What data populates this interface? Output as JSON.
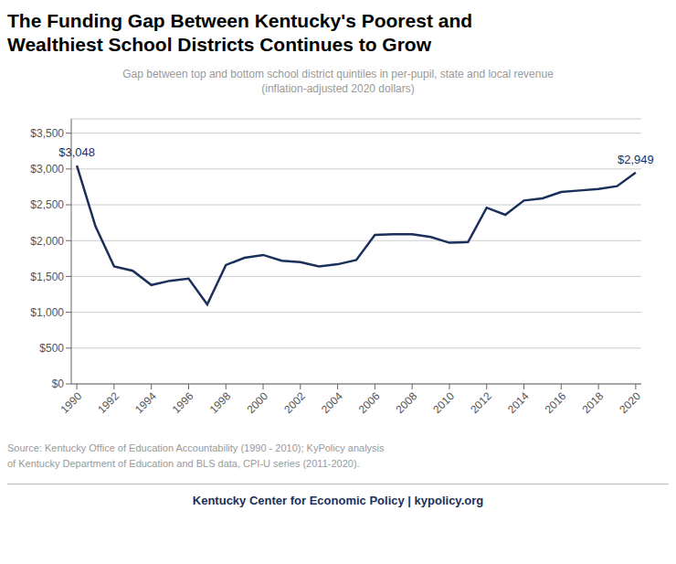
{
  "chart_data": {
    "type": "line",
    "title": "The Funding Gap Between Kentucky's Poorest and\nWealthiest School Districts Continues to Grow",
    "subtitle": "Gap between top and bottom school district quintiles in per-pupil, state and local revenue\n(inflation-adjusted 2020 dollars)",
    "x": [
      1990,
      1991,
      1992,
      1993,
      1994,
      1995,
      1996,
      1997,
      1998,
      1999,
      2000,
      2001,
      2002,
      2003,
      2004,
      2005,
      2006,
      2007,
      2008,
      2009,
      2010,
      2011,
      2012,
      2013,
      2014,
      2015,
      2016,
      2017,
      2018,
      2019,
      2020
    ],
    "values": [
      3048,
      2200,
      1640,
      1580,
      1380,
      1440,
      1470,
      1110,
      1660,
      1760,
      1800,
      1720,
      1700,
      1640,
      1670,
      1730,
      2080,
      2090,
      2090,
      2050,
      1970,
      1980,
      2460,
      2360,
      2560,
      2590,
      2680,
      2700,
      2720,
      2760,
      2949
    ],
    "color": "#1a2f5a",
    "xlim": [
      1989.7,
      2020.3
    ],
    "xticks": [
      1990,
      1992,
      1994,
      1996,
      1998,
      2000,
      2002,
      2004,
      2006,
      2008,
      2010,
      2012,
      2014,
      2016,
      2018,
      2020
    ],
    "ylim": [
      0,
      3700
    ],
    "yticks": [
      {
        "value": 0,
        "label": "$0"
      },
      {
        "value": 500,
        "label": "$500"
      },
      {
        "value": 1000,
        "label": "$1,000"
      },
      {
        "value": 1500,
        "label": "$1,500"
      },
      {
        "value": 2000,
        "label": "$2,000"
      },
      {
        "value": 2500,
        "label": "$2,500"
      },
      {
        "value": 3000,
        "label": "$3,000"
      },
      {
        "value": 3500,
        "label": "$3,500"
      }
    ],
    "grid": true,
    "annotations": [
      {
        "x": 1990,
        "y": 3048,
        "label": "$3,048"
      },
      {
        "x": 2020,
        "y": 2949,
        "label": "$2,949"
      }
    ],
    "source": "Source: Kentucky Office of Education Accountability (1990 - 2010); KyPolicy analysis\nof Kentucky Department of Education and BLS data, CPI-U series (2011-2020).",
    "footer": "Kentucky Center for Economic Policy | kypolicy.org"
  }
}
